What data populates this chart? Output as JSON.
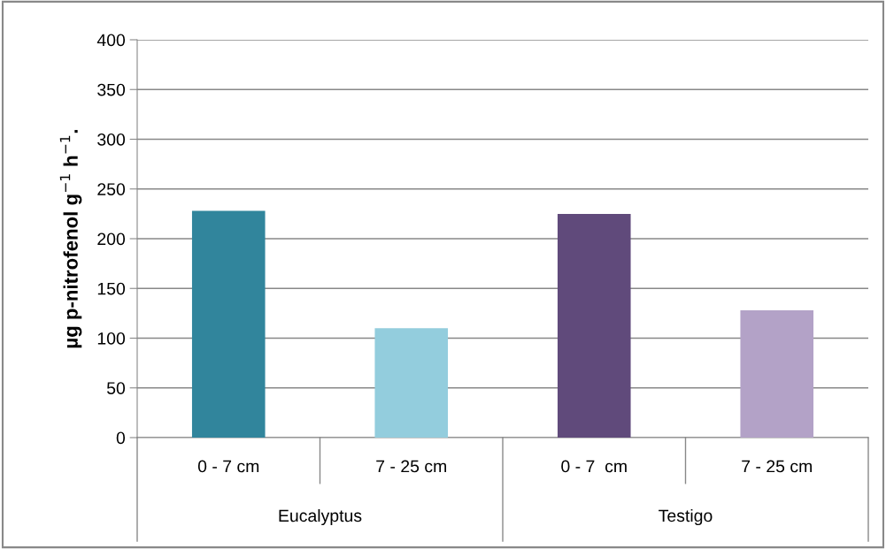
{
  "chart_data": {
    "type": "bar",
    "ylabel": "µg p-nitrofenol g$^{−1}$ h$^{−1}$.",
    "categories": [
      "0 - 7 cm",
      "7 - 25 cm",
      "0 - 7  cm",
      "7 - 25 cm"
    ],
    "values": [
      228,
      110,
      225,
      128
    ],
    "colors": [
      "#31859c",
      "#93cddd",
      "#604a7b",
      "#b3a2c7"
    ],
    "ylim": [
      0,
      400
    ],
    "yticks": [
      0,
      50,
      100,
      150,
      200,
      250,
      300,
      350,
      400
    ],
    "grid": "y",
    "annotations": [
      "Eucalyptus",
      "Testigo"
    ]
  }
}
